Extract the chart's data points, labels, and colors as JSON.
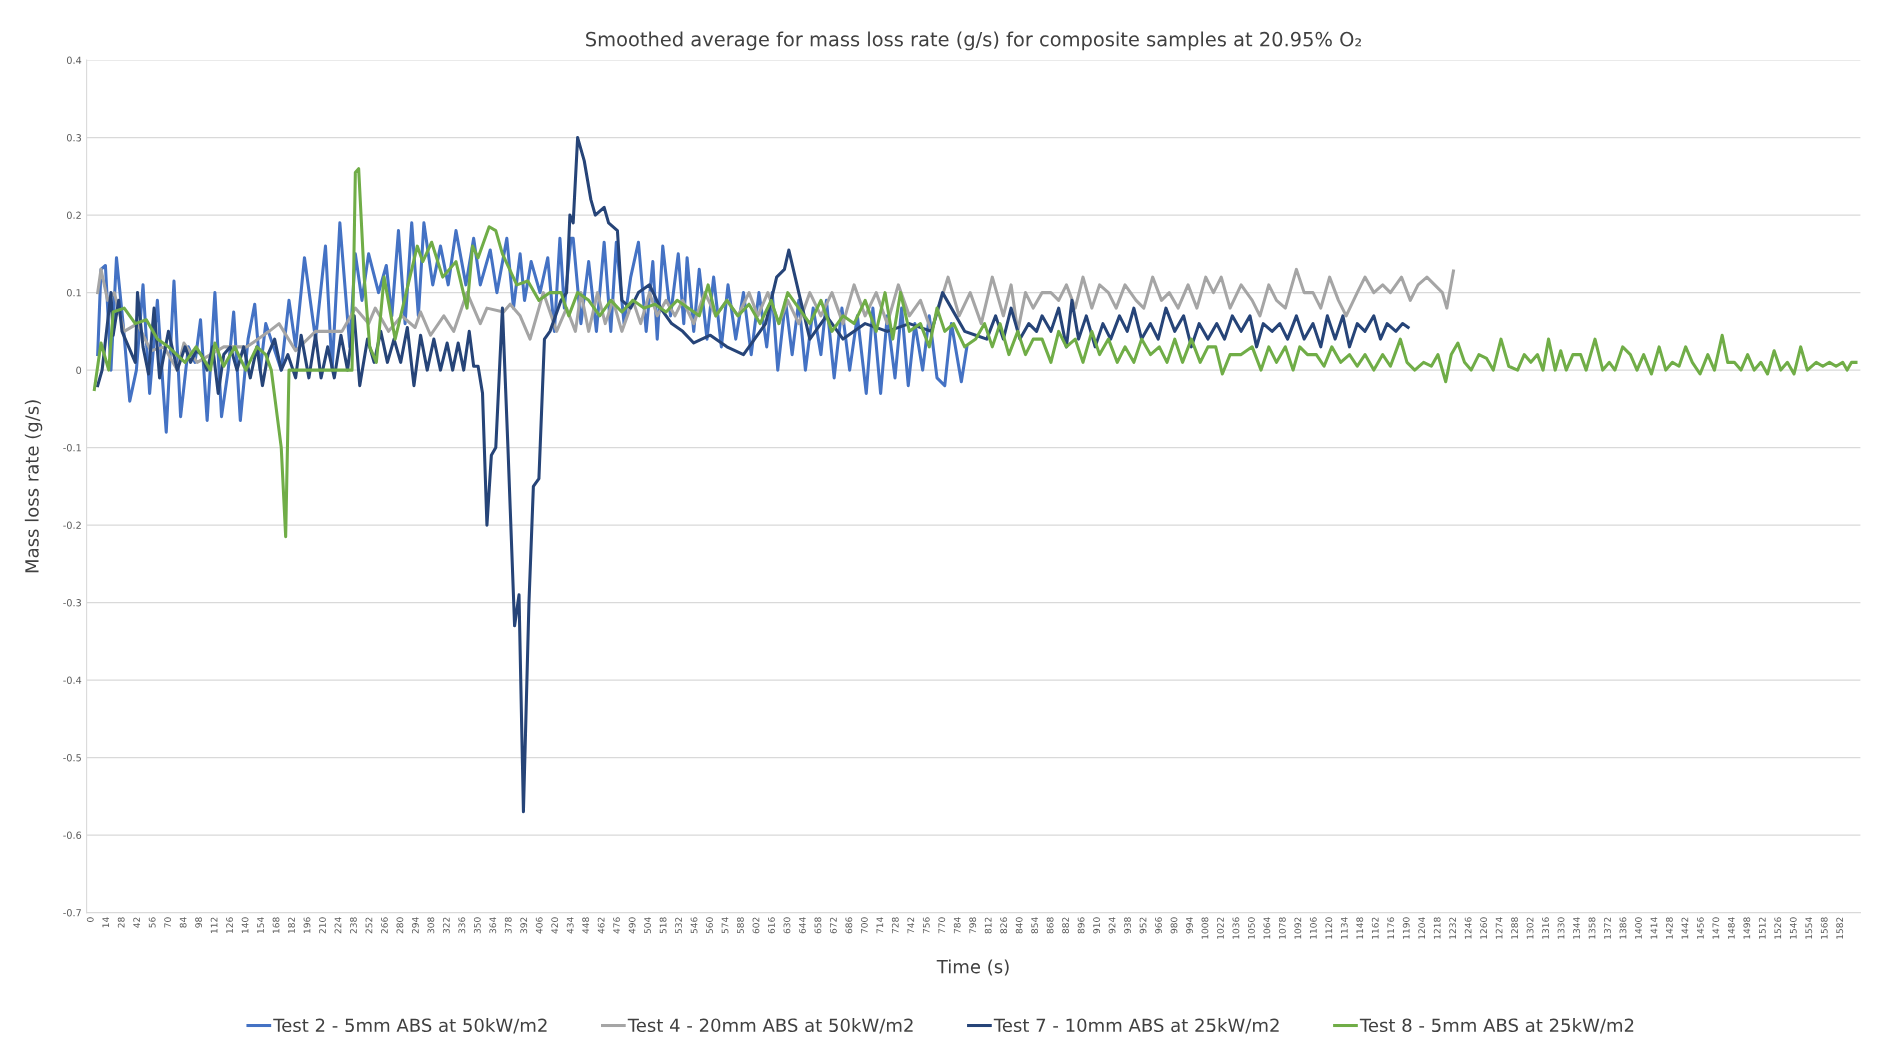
{
  "chart_data": {
    "type": "line",
    "title": "Smoothed average for mass loss rate (g/s) for composite samples at 20.95% O₂",
    "xlabel": "Time (s)",
    "ylabel": "Mass loss rate (g/s)",
    "xlim": [
      -4,
      1600
    ],
    "ylim": [
      -0.7,
      0.4
    ],
    "yticks": [
      -0.7,
      -0.6,
      -0.5,
      -0.4,
      -0.3,
      -0.2,
      -0.1,
      0,
      0.1,
      0.2,
      0.3,
      0.4
    ],
    "xticks": [
      0,
      14,
      28,
      42,
      56,
      70,
      84,
      98,
      112,
      126,
      140,
      154,
      168,
      182,
      196,
      210,
      224,
      238,
      252,
      266,
      280,
      294,
      308,
      322,
      336,
      350,
      364,
      378,
      392,
      406,
      420,
      434,
      448,
      462,
      476,
      490,
      504,
      518,
      532,
      546,
      560,
      574,
      588,
      602,
      616,
      630,
      644,
      658,
      672,
      686,
      700,
      714,
      728,
      742,
      756,
      770,
      784,
      798,
      812,
      826,
      840,
      854,
      868,
      882,
      896,
      910,
      924,
      938,
      952,
      966,
      980,
      994,
      1008,
      1022,
      1036,
      1050,
      1064,
      1078,
      1092,
      1106,
      1120,
      1134,
      1148,
      1162,
      1176,
      1190,
      1204,
      1218,
      1232,
      1246,
      1260,
      1274,
      1288,
      1302,
      1316,
      1330,
      1344,
      1358,
      1372,
      1386,
      1400,
      1414,
      1428,
      1442,
      1456,
      1470,
      1484,
      1498,
      1512,
      1526,
      1540,
      1554,
      1568,
      1582
    ],
    "grid": "y",
    "legend": "bottom",
    "line_style": "solid",
    "marker": "none",
    "series": [
      {
        "name": "Test 2 - 5mm ABS at 50kW/m2",
        "color": "#4472c4",
        "x": [
          6,
          9,
          13,
          18,
          23,
          29,
          35,
          41,
          47,
          53,
          60,
          65,
          68,
          75,
          81,
          88,
          94,
          99,
          105,
          112,
          118,
          124,
          129,
          135,
          142,
          148,
          153,
          158,
          165,
          172,
          179,
          185,
          193,
          203,
          212,
          218,
          225,
          234,
          239,
          245,
          251,
          260,
          267,
          272,
          278,
          284,
          290,
          296,
          301,
          309,
          316,
          323,
          330,
          339,
          346,
          352,
          361,
          367,
          376,
          382,
          388,
          392,
          398,
          406,
          413,
          419,
          424,
          428,
          434,
          436,
          443,
          450,
          457,
          464,
          470,
          475,
          482,
          488,
          495,
          502,
          508,
          512,
          517,
          524,
          531,
          536,
          539,
          545,
          550,
          557,
          563,
          570,
          576,
          583,
          590,
          597,
          604,
          611,
          616,
          621,
          628,
          634,
          640,
          646,
          653,
          660,
          665,
          672,
          679,
          686,
          693,
          701,
          707,
          714,
          720,
          727,
          733,
          739,
          745,
          752,
          758,
          765,
          772,
          778,
          787,
          792
        ],
        "values": [
          0.02,
          0.13,
          0.135,
          0.0,
          0.145,
          0.06,
          -0.04,
          0.0,
          0.11,
          -0.03,
          0.09,
          -0.02,
          -0.08,
          0.115,
          -0.06,
          0.03,
          0.01,
          0.065,
          -0.065,
          0.1,
          -0.06,
          0.0,
          0.075,
          -0.065,
          0.04,
          0.085,
          0.0,
          0.06,
          0.03,
          0.0,
          0.09,
          0.03,
          0.145,
          0.04,
          0.16,
          0.0,
          0.19,
          0.03,
          0.15,
          0.09,
          0.15,
          0.1,
          0.135,
          0.07,
          0.18,
          0.06,
          0.19,
          0.07,
          0.19,
          0.11,
          0.16,
          0.11,
          0.18,
          0.11,
          0.17,
          0.11,
          0.155,
          0.1,
          0.17,
          0.08,
          0.15,
          0.09,
          0.14,
          0.1,
          0.145,
          0.05,
          0.17,
          0.08,
          0.17,
          0.17,
          0.06,
          0.14,
          0.05,
          0.165,
          0.05,
          0.165,
          0.06,
          0.12,
          0.165,
          0.05,
          0.14,
          0.04,
          0.16,
          0.07,
          0.15,
          0.06,
          0.145,
          0.05,
          0.13,
          0.04,
          0.12,
          0.03,
          0.11,
          0.04,
          0.1,
          0.02,
          0.1,
          0.03,
          0.1,
          0.0,
          0.09,
          0.02,
          0.09,
          0.0,
          0.08,
          0.02,
          0.09,
          -0.01,
          0.08,
          0.0,
          0.07,
          -0.03,
          0.08,
          -0.03,
          0.07,
          -0.01,
          0.08,
          -0.02,
          0.06,
          0.0,
          0.07,
          -0.01,
          -0.02,
          0.06,
          -0.015,
          0.03
        ]
      },
      {
        "name": "Test 4 - 20mm ABS at 50kW/m2",
        "color": "#a5a5a5",
        "x": [
          6,
          9,
          15,
          21,
          30,
          42,
          54,
          66,
          78,
          84,
          96,
          120,
          141,
          161,
          170,
          185,
          203,
          215,
          227,
          239,
          251,
          257,
          269,
          281,
          293,
          298,
          307,
          319,
          328,
          340,
          352,
          358,
          373,
          379,
          388,
          397,
          409,
          421,
          430,
          438,
          443,
          450,
          458,
          465,
          472,
          480,
          490,
          497,
          505,
          512,
          520,
          528,
          535,
          545,
          555,
          565,
          575,
          585,
          595,
          603,
          612,
          622,
          630,
          640,
          650,
          660,
          670,
          680,
          690,
          700,
          710,
          720,
          730,
          740,
          750,
          760,
          775,
          785,
          795,
          805,
          815,
          825,
          832,
          838,
          845,
          852,
          860,
          868,
          875,
          882,
          890,
          897,
          905,
          912,
          920,
          927,
          935,
          945,
          952,
          960,
          968,
          975,
          983,
          992,
          1000,
          1008,
          1015,
          1022,
          1030,
          1040,
          1050,
          1057,
          1065,
          1072,
          1080,
          1090,
          1097,
          1105,
          1112,
          1120,
          1128,
          1135,
          1145,
          1152,
          1160,
          1168,
          1175,
          1185,
          1193,
          1200,
          1208,
          1215,
          1222,
          1226,
          1232
        ],
        "values": [
          0.1,
          0.13,
          0.09,
          0.1,
          0.05,
          0.06,
          0.025,
          0.03,
          0.0,
          0.035,
          0.01,
          0.03,
          0.03,
          0.05,
          0.06,
          0.025,
          0.05,
          0.05,
          0.05,
          0.08,
          0.06,
          0.08,
          0.05,
          0.07,
          0.055,
          0.075,
          0.045,
          0.07,
          0.05,
          0.1,
          0.06,
          0.08,
          0.075,
          0.085,
          0.07,
          0.04,
          0.1,
          0.05,
          0.08,
          0.05,
          0.1,
          0.05,
          0.1,
          0.06,
          0.09,
          0.05,
          0.09,
          0.06,
          0.1,
          0.07,
          0.09,
          0.07,
          0.09,
          0.06,
          0.1,
          0.07,
          0.09,
          0.07,
          0.1,
          0.07,
          0.1,
          0.06,
          0.09,
          0.06,
          0.1,
          0.07,
          0.1,
          0.06,
          0.11,
          0.07,
          0.1,
          0.06,
          0.11,
          0.07,
          0.09,
          0.05,
          0.12,
          0.07,
          0.1,
          0.06,
          0.12,
          0.07,
          0.11,
          0.05,
          0.1,
          0.08,
          0.1,
          0.1,
          0.09,
          0.11,
          0.08,
          0.12,
          0.08,
          0.11,
          0.1,
          0.08,
          0.11,
          0.09,
          0.08,
          0.12,
          0.09,
          0.1,
          0.08,
          0.11,
          0.08,
          0.12,
          0.1,
          0.12,
          0.08,
          0.11,
          0.09,
          0.07,
          0.11,
          0.09,
          0.08,
          0.13,
          0.1,
          0.1,
          0.08,
          0.12,
          0.09,
          0.07,
          0.1,
          0.12,
          0.1,
          0.11,
          0.1,
          0.12,
          0.09,
          0.11,
          0.12,
          0.11,
          0.1,
          0.08,
          0.128
        ]
      },
      {
        "name": "Test 7 - 10mm ABS at 25kW/m2",
        "color": "#264478",
        "x": [
          6,
          10,
          18,
          20,
          25,
          28,
          34,
          40,
          42,
          47,
          52,
          57,
          62,
          70,
          78,
          85,
          90,
          95,
          100,
          105,
          110,
          115,
          120,
          126,
          132,
          138,
          144,
          150,
          155,
          160,
          166,
          172,
          178,
          185,
          190,
          197,
          203,
          208,
          214,
          220,
          226,
          232,
          238,
          243,
          250,
          256,
          262,
          268,
          274,
          280,
          286,
          292,
          298,
          304,
          310,
          316,
          322,
          327,
          332,
          337,
          342,
          346,
          350,
          354,
          358,
          362,
          366,
          372,
          377,
          383,
          387,
          391,
          396,
          400,
          405,
          410,
          415,
          425,
          430,
          433,
          436,
          440,
          444,
          446,
          452,
          456,
          464,
          468,
          476,
          480,
          488,
          495,
          505,
          515,
          525,
          535,
          545,
          560,
          575,
          590,
          600,
          610,
          620,
          627,
          631,
          640,
          650,
          665,
          680,
          700,
          720,
          740,
          760,
          770,
          790,
          800,
          810,
          818,
          825,
          832,
          840,
          848,
          855,
          860,
          868,
          875,
          882,
          887,
          893,
          900,
          908,
          915,
          922,
          930,
          937,
          943,
          950,
          958,
          965,
          972,
          980,
          988,
          995,
          1002,
          1010,
          1018,
          1025,
          1032,
          1040,
          1048,
          1054,
          1060,
          1068,
          1075,
          1082,
          1090,
          1097,
          1105,
          1112,
          1118,
          1125,
          1132,
          1138,
          1145,
          1152,
          1160,
          1166,
          1172,
          1180,
          1186,
          1191
        ],
        "values": [
          -0.02,
          0.0,
          0.1,
          0.045,
          0.09,
          0.05,
          0.03,
          0.01,
          0.1,
          0.03,
          -0.005,
          0.08,
          -0.01,
          0.05,
          0.0,
          0.03,
          0.01,
          0.025,
          0.02,
          0.0,
          0.03,
          -0.03,
          0.02,
          0.03,
          0.0,
          0.03,
          -0.01,
          0.03,
          -0.02,
          0.02,
          0.04,
          0.0,
          0.02,
          -0.01,
          0.045,
          -0.01,
          0.045,
          -0.01,
          0.03,
          -0.01,
          0.045,
          0.0,
          0.07,
          -0.02,
          0.04,
          0.01,
          0.05,
          0.01,
          0.04,
          0.01,
          0.055,
          -0.02,
          0.045,
          0.0,
          0.04,
          0.0,
          0.035,
          0.0,
          0.035,
          0.0,
          0.05,
          0.005,
          0.005,
          -0.03,
          -0.2,
          -0.11,
          -0.1,
          0.08,
          -0.1,
          -0.33,
          -0.29,
          -0.57,
          -0.3,
          -0.15,
          -0.14,
          0.04,
          0.05,
          0.09,
          0.1,
          0.2,
          0.19,
          0.3,
          0.28,
          0.27,
          0.22,
          0.2,
          0.21,
          0.19,
          0.18,
          0.09,
          0.08,
          0.1,
          0.11,
          0.08,
          0.06,
          0.05,
          0.035,
          0.045,
          0.03,
          0.02,
          0.04,
          0.06,
          0.12,
          0.13,
          0.155,
          0.1,
          0.04,
          0.07,
          0.04,
          0.06,
          0.05,
          0.06,
          0.05,
          0.1,
          0.05,
          0.045,
          0.04,
          0.07,
          0.04,
          0.08,
          0.04,
          0.06,
          0.05,
          0.07,
          0.05,
          0.08,
          0.03,
          0.09,
          0.04,
          0.07,
          0.03,
          0.06,
          0.04,
          0.07,
          0.05,
          0.08,
          0.04,
          0.06,
          0.04,
          0.08,
          0.05,
          0.07,
          0.03,
          0.06,
          0.04,
          0.06,
          0.04,
          0.07,
          0.05,
          0.07,
          0.03,
          0.06,
          0.05,
          0.06,
          0.04,
          0.07,
          0.04,
          0.06,
          0.03,
          0.07,
          0.04,
          0.07,
          0.03,
          0.06,
          0.05,
          0.07,
          0.04,
          0.06,
          0.05,
          0.06,
          0.055
        ]
      },
      {
        "name": "Test 8 - 5mm ABS at 25kW/m2",
        "color": "#70ad47",
        "x": [
          3,
          9,
          16,
          20,
          30,
          40,
          50,
          60,
          70,
          85,
          95,
          108,
          112,
          120,
          130,
          140,
          150,
          158,
          163,
          172,
          176,
          179,
          190,
          210,
          236,
          239,
          242,
          247,
          252,
          258,
          265,
          275,
          285,
          295,
          300,
          308,
          318,
          330,
          340,
          345,
          350,
          360,
          366,
          372,
          385,
          395,
          405,
          415,
          425,
          432,
          440,
          450,
          460,
          470,
          480,
          490,
          500,
          510,
          520,
          530,
          540,
          550,
          558,
          565,
          575,
          585,
          595,
          605,
          615,
          622,
          630,
          640,
          650,
          660,
          670,
          680,
          690,
          700,
          710,
          718,
          725,
          732,
          740,
          750,
          758,
          765,
          772,
          780,
          790,
          800,
          808,
          815,
          822,
          830,
          838,
          845,
          852,
          860,
          868,
          875,
          882,
          890,
          897,
          905,
          912,
          920,
          928,
          935,
          943,
          950,
          958,
          966,
          973,
          980,
          987,
          995,
          1003,
          1010,
          1017,
          1023,
          1030,
          1040,
          1050,
          1058,
          1065,
          1072,
          1080,
          1087,
          1093,
          1100,
          1108,
          1115,
          1122,
          1130,
          1138,
          1145,
          1152,
          1160,
          1168,
          1175,
          1184,
          1190,
          1197,
          1205,
          1212,
          1218,
          1225,
          1230,
          1236,
          1242,
          1248,
          1255,
          1262,
          1268,
          1275,
          1282,
          1290,
          1296,
          1302,
          1308,
          1313,
          1318,
          1324,
          1329,
          1334,
          1340,
          1347,
          1352,
          1360,
          1367,
          1373,
          1378,
          1385,
          1392,
          1398,
          1404,
          1411,
          1418,
          1424,
          1430,
          1436,
          1442,
          1448,
          1455,
          1462,
          1468,
          1475,
          1480,
          1486,
          1492,
          1498,
          1504,
          1510,
          1516,
          1522,
          1528,
          1534,
          1540,
          1546,
          1552,
          1560,
          1566,
          1572,
          1578,
          1584,
          1588,
          1592,
          1596
        ],
        "values": [
          -0.025,
          0.035,
          0.0,
          0.075,
          0.08,
          0.06,
          0.065,
          0.04,
          0.03,
          0.01,
          0.03,
          0.0,
          0.035,
          0.005,
          0.03,
          0.0,
          0.03,
          0.02,
          0.0,
          -0.1,
          -0.215,
          0.0,
          0.0,
          0.0,
          0.0,
          0.255,
          0.26,
          0.12,
          0.03,
          0.01,
          0.12,
          0.04,
          0.1,
          0.16,
          0.14,
          0.165,
          0.12,
          0.14,
          0.08,
          0.16,
          0.145,
          0.185,
          0.18,
          0.15,
          0.11,
          0.115,
          0.09,
          0.1,
          0.1,
          0.07,
          0.1,
          0.09,
          0.07,
          0.09,
          0.075,
          0.09,
          0.08,
          0.085,
          0.075,
          0.09,
          0.08,
          0.07,
          0.11,
          0.07,
          0.09,
          0.07,
          0.085,
          0.06,
          0.09,
          0.06,
          0.1,
          0.08,
          0.06,
          0.09,
          0.05,
          0.07,
          0.06,
          0.09,
          0.05,
          0.1,
          0.04,
          0.1,
          0.05,
          0.06,
          0.03,
          0.08,
          0.05,
          0.06,
          0.03,
          0.04,
          0.06,
          0.03,
          0.06,
          0.02,
          0.05,
          0.02,
          0.04,
          0.04,
          0.01,
          0.05,
          0.03,
          0.04,
          0.01,
          0.05,
          0.02,
          0.04,
          0.01,
          0.03,
          0.01,
          0.04,
          0.02,
          0.03,
          0.01,
          0.04,
          0.01,
          0.04,
          0.01,
          0.03,
          0.03,
          -0.005,
          0.02,
          0.02,
          0.03,
          0.0,
          0.03,
          0.01,
          0.03,
          0.0,
          0.03,
          0.02,
          0.02,
          0.005,
          0.03,
          0.01,
          0.02,
          0.005,
          0.02,
          0.0,
          0.02,
          0.005,
          0.04,
          0.01,
          0.0,
          0.01,
          0.005,
          0.02,
          -0.015,
          0.02,
          0.035,
          0.01,
          0.0,
          0.02,
          0.015,
          0.0,
          0.04,
          0.005,
          0.0,
          0.02,
          0.01,
          0.02,
          0.0,
          0.04,
          0.0,
          0.025,
          0.0,
          0.02,
          0.02,
          0.0,
          0.04,
          0.0,
          0.01,
          0.0,
          0.03,
          0.02,
          0.0,
          0.02,
          -0.005,
          0.03,
          0.0,
          0.01,
          0.005,
          0.03,
          0.01,
          -0.005,
          0.02,
          0.0,
          0.045,
          0.01,
          0.01,
          0.0,
          0.02,
          0.0,
          0.01,
          -0.005,
          0.025,
          0.0,
          0.01,
          -0.005,
          0.03,
          0.0,
          0.01,
          0.005,
          0.01,
          0.005,
          0.01,
          0.0,
          0.01,
          0.01
        ]
      }
    ]
  }
}
